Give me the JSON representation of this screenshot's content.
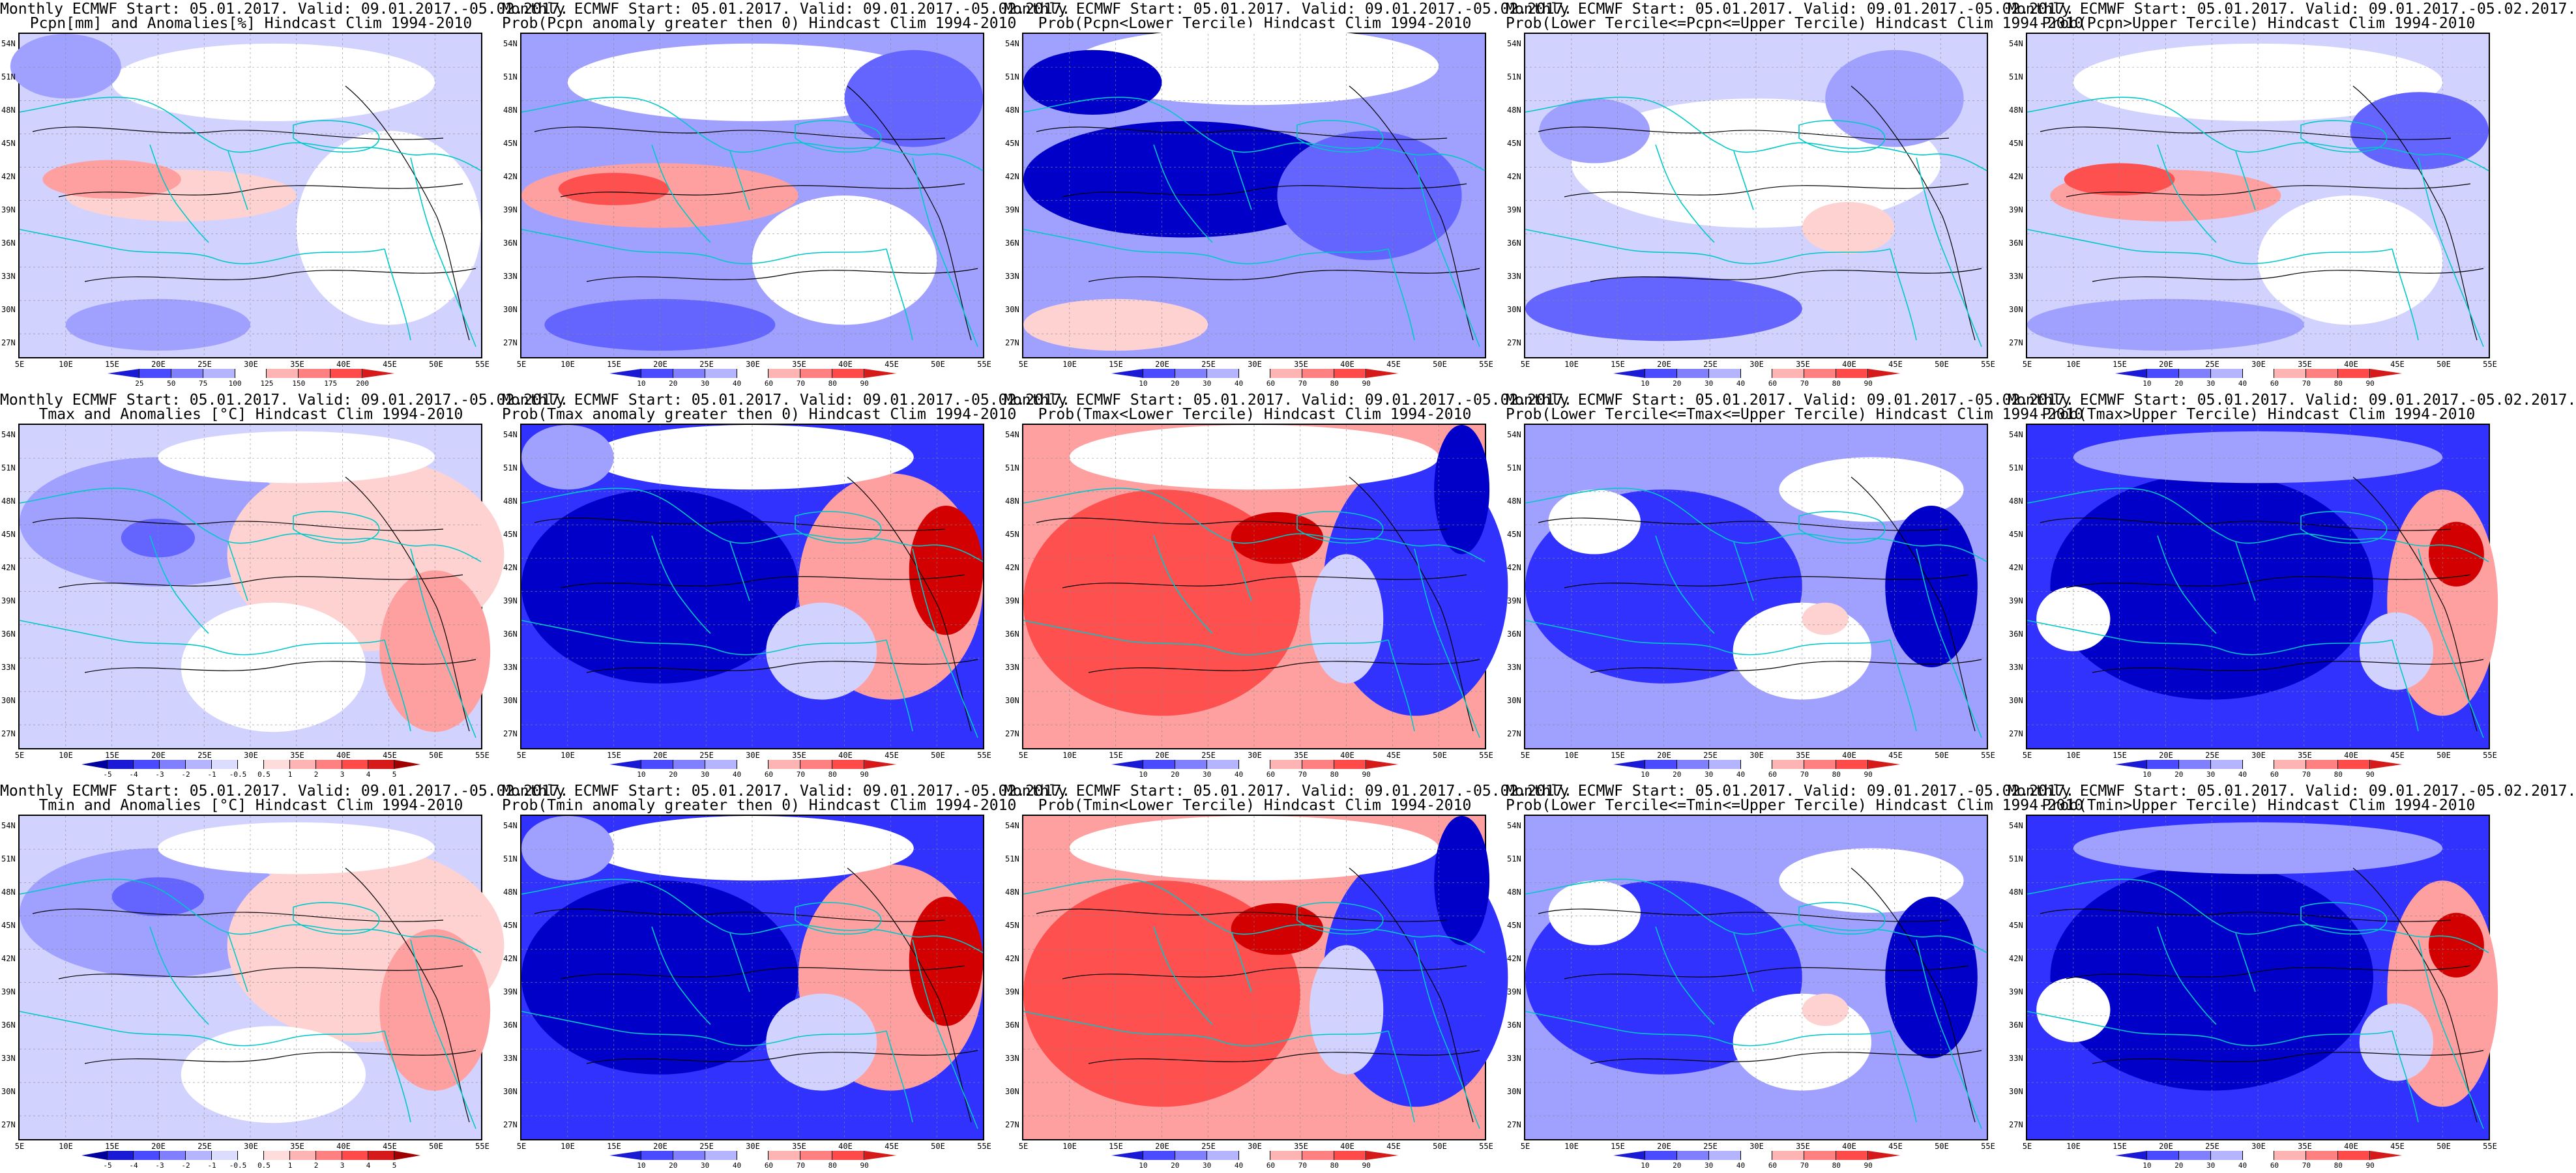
{
  "axes": {
    "lat_labels": [
      "54N",
      "51N",
      "48N",
      "45N",
      "42N",
      "39N",
      "36N",
      "33N",
      "30N",
      "27N"
    ],
    "lon_labels": [
      "5E",
      "10E",
      "15E",
      "20E",
      "25E",
      "30E",
      "35E",
      "40E",
      "45E",
      "50E",
      "55E"
    ]
  },
  "colorbars": {
    "anomaly_precip": {
      "labels": [
        "25",
        "50",
        "75",
        "100",
        "125",
        "150",
        "175",
        "200"
      ],
      "colors": [
        "#1a1ad6",
        "#4a4aff",
        "#8080ff",
        "#b4b4ff",
        "#ffffff",
        "#ffb4b4",
        "#ff8080",
        "#ff4a4a",
        "#d61a1a"
      ]
    },
    "prob_precip_a": {
      "labels": [
        "10",
        "20",
        "30",
        "40",
        "60",
        "70",
        "80",
        "90"
      ],
      "colors": [
        "#1a1ad6",
        "#4a4aff",
        "#8080ff",
        "#b4b4ff",
        "#ffffff",
        "#ffb4b4",
        "#ff8080",
        "#ff4a4a",
        "#d61a1a"
      ]
    },
    "prob_precip_b": {
      "labels": [
        "10",
        "20",
        "30",
        "40",
        "60",
        "70",
        "80",
        "90"
      ],
      "colors": [
        "#1a1ad6",
        "#4a4aff",
        "#8080ff",
        "#b4b4ff",
        "#ffffff",
        "#ffb4b4",
        "#ff8080",
        "#ff4a4a",
        "#d61a1a"
      ]
    },
    "anomaly_temp": {
      "labels": [
        "-5",
        "-4",
        "-3",
        "-2",
        "-1",
        "-0.5",
        "0.5",
        "1",
        "2",
        "3",
        "4",
        "5"
      ],
      "colors": [
        "#0000a0",
        "#1a1ad6",
        "#4a4aff",
        "#8080ff",
        "#b4b4ff",
        "#dcdcff",
        "#ffffff",
        "#ffdcdc",
        "#ffb4b4",
        "#ff8080",
        "#ff4a4a",
        "#d61a1a",
        "#a00000"
      ]
    },
    "prob_temp": {
      "labels": [
        "10",
        "20",
        "30",
        "40",
        "60",
        "70",
        "80",
        "90"
      ],
      "colors": [
        "#1a1ad6",
        "#4a4aff",
        "#8080ff",
        "#b4b4ff",
        "#ffffff",
        "#ffb4b4",
        "#ff8080",
        "#ff4a4a",
        "#d61a1a"
      ]
    }
  },
  "panels": [
    {
      "id": "p1",
      "line1": "Monthly ECMWF Start: 05.01.2017. Valid: 09.01.2017.-05.02.2017.",
      "line2": "Pcpn[mm] and Anomalies[%] Hindcast Clim 1994-2010",
      "bar": "anomaly_precip",
      "scheme": "pcpn_anom"
    },
    {
      "id": "p2",
      "line1": "Monthly ECMWF Start: 05.01.2017. Valid: 09.01.2017.-05.02.2017.",
      "line2": "Prob(Pcpn anomaly greater then 0) Hindcast Clim 1994-2010",
      "bar": "prob_precip_a",
      "scheme": "pcpn_pos"
    },
    {
      "id": "p3",
      "line1": "Monthly ECMWF Start: 05.01.2017. Valid: 09.01.2017.-05.02.2017.",
      "line2": "Prob(Pcpn<Lower Tercile) Hindcast Clim 1994-2010",
      "bar": "prob_precip_a",
      "scheme": "pcpn_low"
    },
    {
      "id": "p4",
      "line1": "Monthly ECMWF Start: 05.01.2017. Valid: 09.01.2017.-05.02.2017.",
      "line2": "Prob(Lower Tercile<=Pcpn<=Upper Tercile) Hindcast Clim 1994-2010",
      "bar": "prob_precip_b",
      "scheme": "pcpn_mid"
    },
    {
      "id": "p5",
      "line1": "Monthly ECMWF Start: 05.01.2017. Valid: 09.01.2017.-05.02.2017.",
      "line2": "Prob(Pcpn>Upper Tercile) Hindcast Clim 1994-2010",
      "bar": "prob_precip_b",
      "scheme": "pcpn_up"
    },
    {
      "id": "p6",
      "line1": "Monthly ECMWF Start: 05.01.2017. Valid: 09.01.2017.-05.02.2017.",
      "line2": "Tmax and Anomalies [°C] Hindcast Clim 1994-2010",
      "bar": "anomaly_temp",
      "scheme": "tmax_anom"
    },
    {
      "id": "p7",
      "line1": "Monthly ECMWF Start: 05.01.2017. Valid: 09.01.2017.-05.02.2017.",
      "line2": "Prob(Tmax anomaly greater then 0) Hindcast Clim 1994-2010",
      "bar": "prob_temp",
      "scheme": "t_pos"
    },
    {
      "id": "p8",
      "line1": "Monthly ECMWF Start: 05.01.2017. Valid: 09.01.2017.-05.02.2017.",
      "line2": "Prob(Tmax<Lower Tercile) Hindcast Clim 1994-2010",
      "bar": "prob_temp",
      "scheme": "t_low"
    },
    {
      "id": "p9",
      "line1": "Monthly ECMWF Start: 05.01.2017. Valid: 09.01.2017.-05.02.2017.",
      "line2": "Prob(Lower Tercile<=Tmax<=Upper Tercile) Hindcast Clim 1994-2010",
      "bar": "prob_temp",
      "scheme": "t_mid"
    },
    {
      "id": "p10",
      "line1": "Monthly ECMWF Start: 05.01.2017. Valid: 09.01.2017.-05.02.2017.",
      "line2": "Prob(Tmax>Upper Tercile) Hindcast Clim 1994-2010",
      "bar": "prob_temp",
      "scheme": "t_up"
    },
    {
      "id": "p11",
      "line1": "Monthly ECMWF Start: 05.01.2017. Valid: 09.01.2017.-05.02.2017.",
      "line2": "Tmin and Anomalies [°C] Hindcast Clim 1994-2010",
      "bar": "anomaly_temp",
      "scheme": "tmin_anom"
    },
    {
      "id": "p12",
      "line1": "Monthly ECMWF Start: 05.01.2017. Valid: 09.01.2017.-05.02.2017.",
      "line2": "Prob(Tmin anomaly greater then 0) Hindcast Clim 1994-2010",
      "bar": "prob_temp",
      "scheme": "t_pos"
    },
    {
      "id": "p13",
      "line1": "Monthly ECMWF Start: 05.01.2017. Valid: 09.01.2017.-05.02.2017.",
      "line2": "Prob(Tmin<Lower Tercile) Hindcast Clim 1994-2010",
      "bar": "prob_temp",
      "scheme": "t_low"
    },
    {
      "id": "p14",
      "line1": "Monthly ECMWF Start: 05.01.2017. Valid: 09.01.2017.-05.02.2017.",
      "line2": "Prob(Lower Tercile<=Tmin<=Upper Tercile) Hindcast Clim 1994-2010",
      "bar": "prob_temp",
      "scheme": "t_mid"
    },
    {
      "id": "p15",
      "line1": "Monthly ECMWF Start: 05.01.2017. Valid: 09.01.2017.-05.02.2017.",
      "line2": "Prob(Tmin>Upper Tercile) Hindcast Clim 1994-2010",
      "bar": "prob_temp",
      "scheme": "t_up"
    }
  ],
  "colors": {
    "deep_blue": "#0000c8",
    "blue": "#3232ff",
    "mid_blue": "#6464ff",
    "light_blue": "#a0a0ff",
    "pale_blue": "#d2d2ff",
    "white": "#ffffff",
    "pale_red": "#ffd2d2",
    "light_red": "#ffa0a0",
    "red": "#ff5050",
    "deep_red": "#d20000",
    "coast": "#00c8c8",
    "contour": "#000000"
  }
}
